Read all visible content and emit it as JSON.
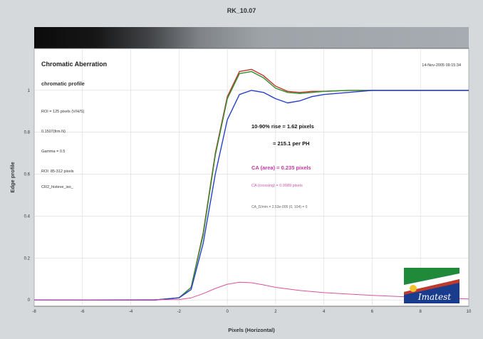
{
  "chart_data": {
    "type": "line",
    "window_title": "RK_10.07",
    "title": "Chromatic Aberration",
    "subtitle": "chromatic profile",
    "date": "14-Nov-2005 09:15:34",
    "xlabel": "Pixels (Horizontal)",
    "ylabel": "Edge profile",
    "xlim": [
      -8,
      10
    ],
    "ylim": [
      -0.03,
      1.2
    ],
    "xticks": [
      -8,
      -6,
      -4,
      -2,
      0,
      2,
      4,
      6,
      8,
      10
    ],
    "yticks": [
      0,
      0.2,
      0.4,
      0.6,
      0.8,
      1
    ],
    "grid": true,
    "info_lines": [
      "ROI = 125 pixels (V/H/S)",
      "0.1507(frm N)",
      "Gamma = 0.5",
      "ROI: 85-312 pixels",
      "CR2_histeve_iso_"
    ],
    "annotations": {
      "rise": "10-90% rise = 1.62 pixels",
      "rise_ph": "= 215.1 per PH",
      "ca_area": "CA (area) = 0.235 pixels",
      "ca_crossing": "CA (crossing) = 0.0089 pixels",
      "ca_extra": "CA_D/mm = 2.53e-005 (0, 104) = 0"
    },
    "colors": {
      "red": "#c0392b",
      "green": "#2f8f2f",
      "blue": "#2740c8",
      "ca": "#dd4fa0",
      "cyan": "#2ab0c8"
    },
    "series": [
      {
        "color_name": "red",
        "x": [
          -8,
          -3,
          -2,
          -1.5,
          -1,
          -0.5,
          0,
          0.5,
          1,
          1.5,
          2,
          2.5,
          3,
          3.5,
          4,
          5,
          6,
          8,
          10
        ],
        "values": [
          0,
          0,
          0.01,
          0.06,
          0.32,
          0.7,
          0.97,
          1.09,
          1.1,
          1.07,
          1.02,
          0.995,
          0.99,
          0.995,
          0.995,
          1.0,
          1.0,
          1.0,
          1.0
        ]
      },
      {
        "color_name": "green",
        "x": [
          -8,
          -3,
          -2,
          -1.5,
          -1,
          -0.5,
          0,
          0.5,
          1,
          1.5,
          2,
          2.5,
          3,
          3.5,
          4,
          5,
          6,
          8,
          10
        ],
        "values": [
          0,
          0,
          0.01,
          0.06,
          0.31,
          0.69,
          0.96,
          1.08,
          1.09,
          1.06,
          1.01,
          0.99,
          0.985,
          0.99,
          0.995,
          1.0,
          1.0,
          1.0,
          1.0
        ]
      },
      {
        "color_name": "blue",
        "x": [
          -8,
          -3,
          -2,
          -1.5,
          -1,
          -0.5,
          0,
          0.5,
          1,
          1.5,
          2,
          2.5,
          3,
          3.5,
          4,
          5,
          6,
          8,
          10
        ],
        "values": [
          0,
          0,
          0.01,
          0.05,
          0.27,
          0.6,
          0.86,
          0.98,
          1.0,
          0.99,
          0.96,
          0.94,
          0.95,
          0.97,
          0.98,
          0.99,
          1.0,
          1.0,
          1.0
        ]
      },
      {
        "color_name": "ca",
        "x": [
          -8,
          -2,
          -1.5,
          -1,
          -0.5,
          0,
          0.5,
          1,
          1.5,
          2,
          3,
          4,
          5,
          6,
          8,
          10
        ],
        "values": [
          0,
          0.002,
          0.01,
          0.03,
          0.055,
          0.075,
          0.085,
          0.082,
          0.072,
          0.06,
          0.045,
          0.035,
          0.028,
          0.022,
          0.012,
          0.005
        ]
      }
    ]
  }
}
